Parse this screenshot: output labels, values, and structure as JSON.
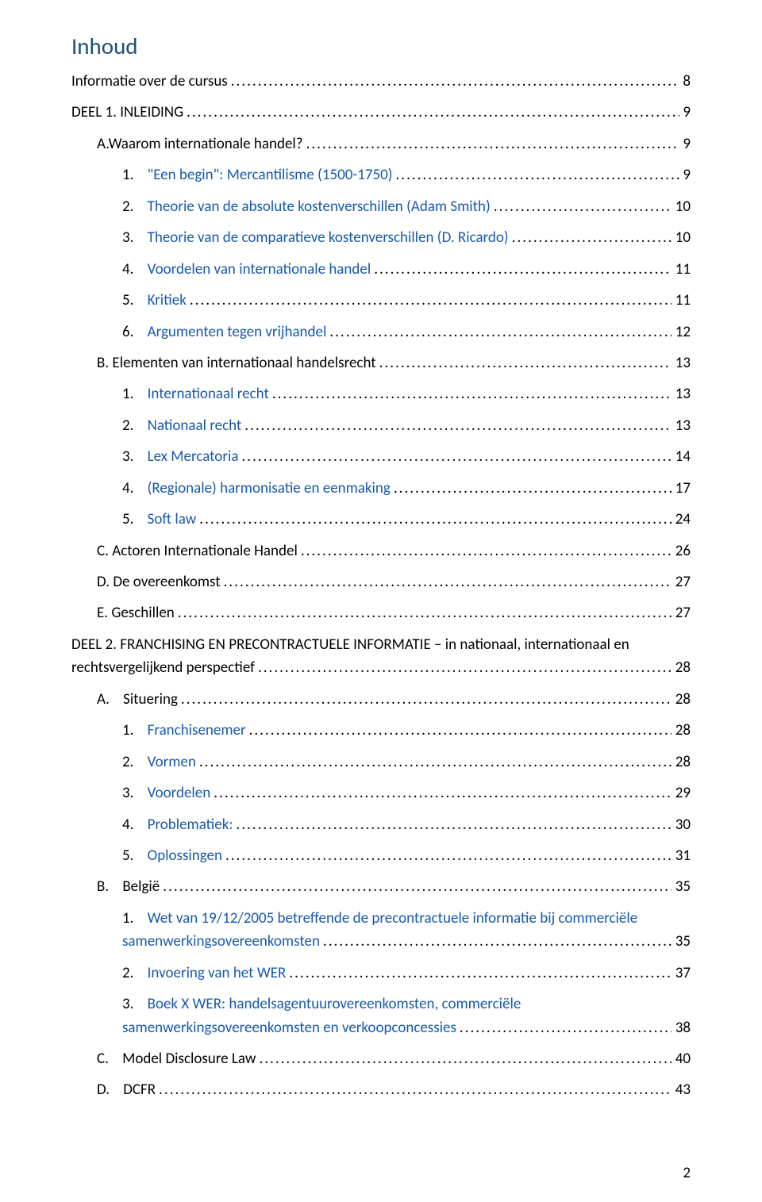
{
  "colors": {
    "title": "#1f4e79",
    "link": "#1859a9",
    "text": "#000000",
    "background": "#ffffff"
  },
  "typography": {
    "title_fontsize": 29,
    "body_fontsize": 19,
    "line_height": 1.55
  },
  "title": "Inhoud",
  "dot_fill": "....................................................................................................................................................................................................................................",
  "page_number": "2",
  "entries": [
    {
      "level": 0,
      "marker": "",
      "text": "Informatie over de cursus",
      "page": "8",
      "color": "text",
      "multiline": false
    },
    {
      "level": 0,
      "marker": "",
      "text": "DEEL 1. INLEIDING",
      "page": "9",
      "color": "text",
      "multiline": false
    },
    {
      "level": 1,
      "marker": "",
      "text": "A.Waarom internationale handel?",
      "page": "9",
      "color": "text",
      "multiline": false
    },
    {
      "level": 2,
      "marker": "1.    ",
      "text": "\"Een begin\": Mercantilisme (1500-1750)",
      "page": "9",
      "color": "link",
      "multiline": false
    },
    {
      "level": 2,
      "marker": "2.    ",
      "text": "Theorie van de absolute kostenverschillen (Adam Smith)",
      "page": "10",
      "color": "link",
      "multiline": false
    },
    {
      "level": 2,
      "marker": "3.    ",
      "text": "Theorie van de comparatieve kostenverschillen (D. Ricardo)",
      "page": "10",
      "color": "link",
      "multiline": false
    },
    {
      "level": 2,
      "marker": "4.    ",
      "text": "Voordelen van internationale handel",
      "page": "11",
      "color": "link",
      "multiline": false
    },
    {
      "level": 2,
      "marker": "5.    ",
      "text": "Kritiek",
      "page": "11",
      "color": "link",
      "multiline": false
    },
    {
      "level": 2,
      "marker": "6.    ",
      "text": "Argumenten tegen vrijhandel",
      "page": "12",
      "color": "link",
      "multiline": false
    },
    {
      "level": 1,
      "marker": "",
      "text": "B. Elementen van internationaal handelsrecht",
      "page": "13",
      "color": "text",
      "multiline": false
    },
    {
      "level": 2,
      "marker": "1.    ",
      "text": "Internationaal recht",
      "page": "13",
      "color": "link",
      "multiline": false
    },
    {
      "level": 2,
      "marker": "2.    ",
      "text": "Nationaal recht",
      "page": "13",
      "color": "link",
      "multiline": false
    },
    {
      "level": 2,
      "marker": "3.    ",
      "text": "Lex Mercatoria",
      "page": "14",
      "color": "link",
      "multiline": false
    },
    {
      "level": 2,
      "marker": "4.    ",
      "text": "(Regionale) harmonisatie en eenmaking",
      "page": "17",
      "color": "link",
      "multiline": false
    },
    {
      "level": 2,
      "marker": "5.    ",
      "text": "Soft law",
      "page": "24",
      "color": "link",
      "multiline": false
    },
    {
      "level": 1,
      "marker": "",
      "text": "C. Actoren Internationale Handel",
      "page": "26",
      "color": "text",
      "multiline": false
    },
    {
      "level": 1,
      "marker": "",
      "text": "D. De overeenkomst",
      "page": "27",
      "color": "text",
      "multiline": false
    },
    {
      "level": 1,
      "marker": "",
      "text": "E. Geschillen",
      "page": "27",
      "color": "text",
      "multiline": false
    },
    {
      "level": 0,
      "marker": "",
      "text": "DEEL 2. FRANCHISING EN PRECONTRACTUELE INFORMATIE – in nationaal, internationaal en",
      "text2": "rechtsvergelijkend perspectief",
      "page": "28",
      "color": "text",
      "multiline": true
    },
    {
      "level": 1,
      "marker": "A.    ",
      "text": "Situering",
      "page": "28",
      "color": "text",
      "multiline": false
    },
    {
      "level": 2,
      "marker": "1.    ",
      "text": "Franchisenemer",
      "page": "28",
      "color": "link",
      "multiline": false
    },
    {
      "level": 2,
      "marker": "2.    ",
      "text": "Vormen",
      "page": "28",
      "color": "link",
      "multiline": false
    },
    {
      "level": 2,
      "marker": "3.    ",
      "text": "Voordelen",
      "page": "29",
      "color": "link",
      "multiline": false
    },
    {
      "level": 2,
      "marker": "4.    ",
      "text": "Problematiek:",
      "page": "30",
      "color": "link",
      "multiline": false
    },
    {
      "level": 2,
      "marker": "5.    ",
      "text": "Oplossingen",
      "page": "31",
      "color": "link",
      "multiline": false
    },
    {
      "level": 1,
      "marker": "B.    ",
      "text": "België",
      "page": "35",
      "color": "text",
      "multiline": false
    },
    {
      "level": 2,
      "marker": "1.    ",
      "text": "Wet van 19/12/2005 betreffende de precontractuele informatie bij commerciële",
      "text2": "samenwerkingsovereenkomsten",
      "page": "35",
      "color": "link",
      "multiline": true
    },
    {
      "level": 2,
      "marker": "2.    ",
      "text": "Invoering van het WER",
      "page": "37",
      "color": "link",
      "multiline": false
    },
    {
      "level": 2,
      "marker": "3.    ",
      "text": "Boek X WER: handelsagentuurovereenkomsten, commerciële",
      "text2": "samenwerkingsovereenkomsten en verkoopconcessies",
      "page": "38",
      "color": "link",
      "multiline": true
    },
    {
      "level": 1,
      "marker": "C.    ",
      "text": "Model Disclosure Law",
      "page": "40",
      "color": "text",
      "multiline": false
    },
    {
      "level": 1,
      "marker": "D.    ",
      "text": "DCFR",
      "page": "43",
      "color": "text",
      "multiline": false
    }
  ]
}
